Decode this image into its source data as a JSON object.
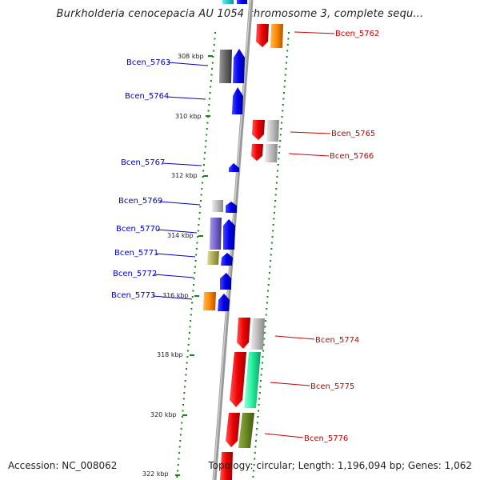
{
  "title": "Burkholderia cenocepacia AU 1054 chromosome 3, complete sequ...",
  "footer": {
    "accession": "Accession: NC_008062",
    "topology": "Topology: circular; Length: 1,196,094 bp; Genes: 1,062"
  },
  "colors": {
    "forward_label": "#0000cc",
    "reverse_label": "#cc0000",
    "tick": "#118811",
    "backbone": "#888888"
  },
  "kbp_labels": [
    "308 kbp",
    "310 kbp",
    "312 kbp",
    "314 kbp",
    "316 kbp",
    "318 kbp",
    "320 kbp",
    "322 kbp"
  ],
  "genes_left": [
    "Bcen_5763",
    "Bcen_5764",
    "Bcen_5767",
    "Bcen_5769",
    "Bcen_5770",
    "Bcen_5771",
    "Bcen_5772",
    "Bcen_5773"
  ],
  "genes_right": [
    "Bcen_5762",
    "Bcen_5765",
    "Bcen_5766",
    "Bcen_5774",
    "Bcen_5775",
    "Bcen_5776"
  ]
}
